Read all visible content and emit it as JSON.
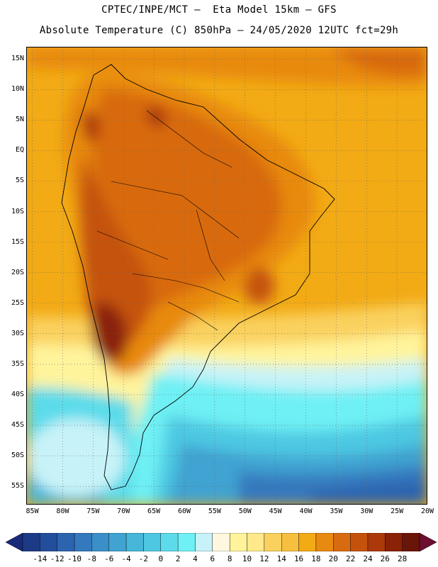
{
  "header": {
    "line1": "CPTEC/INPE/MCT –  Eta Model 15km – GFS",
    "line2": "Absolute Temperature (C) 850hPa – 24/05/2020 12UTC fct=29h"
  },
  "map": {
    "lon_range": [
      -86,
      -20
    ],
    "lat_range": [
      -58,
      17
    ],
    "lat_labels": [
      {
        "lat": 15,
        "label": "15N"
      },
      {
        "lat": 10,
        "label": "10N"
      },
      {
        "lat": 5,
        "label": "5N"
      },
      {
        "lat": 0,
        "label": "EQ"
      },
      {
        "lat": -5,
        "label": "5S"
      },
      {
        "lat": -10,
        "label": "10S"
      },
      {
        "lat": -15,
        "label": "15S"
      },
      {
        "lat": -20,
        "label": "20S"
      },
      {
        "lat": -25,
        "label": "25S"
      },
      {
        "lat": -30,
        "label": "30S"
      },
      {
        "lat": -35,
        "label": "35S"
      },
      {
        "lat": -40,
        "label": "40S"
      },
      {
        "lat": -45,
        "label": "45S"
      },
      {
        "lat": -50,
        "label": "50S"
      },
      {
        "lat": -55,
        "label": "55S"
      }
    ],
    "lon_labels": [
      {
        "lon": -85,
        "label": "85W"
      },
      {
        "lon": -80,
        "label": "80W"
      },
      {
        "lon": -75,
        "label": "75W"
      },
      {
        "lon": -70,
        "label": "70W"
      },
      {
        "lon": -65,
        "label": "65W"
      },
      {
        "lon": -60,
        "label": "60W"
      },
      {
        "lon": -55,
        "label": "55W"
      },
      {
        "lon": -50,
        "label": "50W"
      },
      {
        "lon": -45,
        "label": "45W"
      },
      {
        "lon": -40,
        "label": "40W"
      },
      {
        "lon": -35,
        "label": "35W"
      },
      {
        "lon": -30,
        "label": "30W"
      },
      {
        "lon": -25,
        "label": "25W"
      },
      {
        "lon": -20,
        "label": "20W"
      }
    ],
    "grid": "dotted"
  },
  "colorbar": {
    "labels": [
      "-14",
      "-12",
      "-10",
      "-8",
      "-6",
      "-4",
      "-2",
      "0",
      "2",
      "4",
      "6",
      "8",
      "10",
      "12",
      "14",
      "16",
      "18",
      "20",
      "22",
      "24",
      "26",
      "28"
    ],
    "colors": [
      "#1c3a86",
      "#234e9c",
      "#2c64b0",
      "#3479be",
      "#3b8fc8",
      "#40a3d1",
      "#46b6d9",
      "#4ec8e2",
      "#5cdbea",
      "#6ef0f4",
      "#c7f3f8",
      "#fff7df",
      "#fff49c",
      "#ffe98a",
      "#fad15e",
      "#f6bf3d",
      "#f2aa15",
      "#e88a10",
      "#d86b10",
      "#c5520c",
      "#ac390a",
      "#8a2207",
      "#6a1509"
    ],
    "low_arrow": "#1a2a7a",
    "high_arrow": "#6e0e30"
  }
}
